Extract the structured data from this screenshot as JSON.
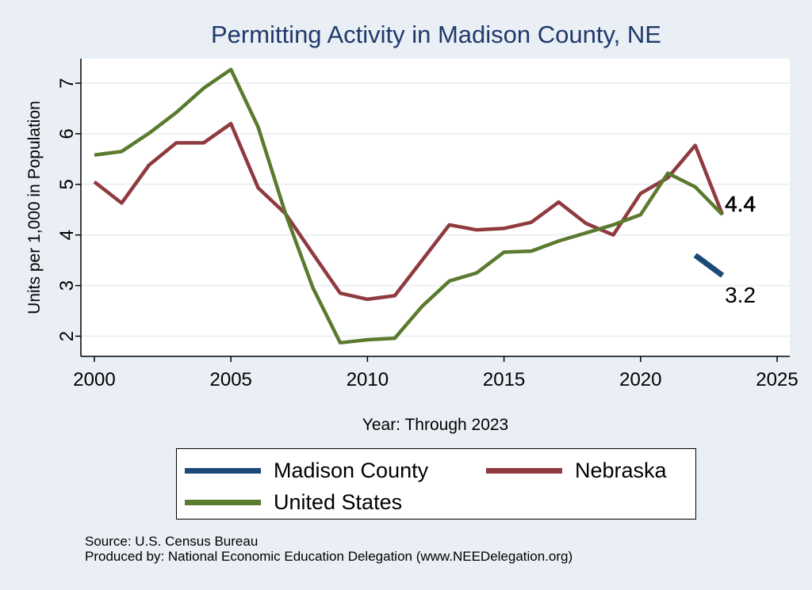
{
  "chart_data": {
    "type": "line",
    "title": "Permitting Activity in Madison County, NE",
    "xlabel": "Year: Through 2023",
    "ylabel": "Units per 1,000 in Population",
    "xlim": [
      2000,
      2025
    ],
    "ylim": [
      1.8,
      7.4
    ],
    "x_ticks": [
      2000,
      2005,
      2010,
      2015,
      2020,
      2025
    ],
    "y_ticks": [
      2,
      3,
      4,
      5,
      6,
      7
    ],
    "grid": true,
    "series": [
      {
        "name": "Madison County",
        "color": "#1b4a78",
        "x": [
          2022,
          2023
        ],
        "values": [
          3.6,
          3.2
        ]
      },
      {
        "name": "Nebraska",
        "color": "#8f3a3e",
        "x": [
          2000,
          2001,
          2002,
          2003,
          2004,
          2005,
          2006,
          2007,
          2008,
          2009,
          2010,
          2011,
          2012,
          2013,
          2014,
          2015,
          2016,
          2017,
          2018,
          2019,
          2020,
          2021,
          2022,
          2023
        ],
        "values": [
          5.05,
          4.63,
          5.38,
          5.82,
          5.82,
          6.2,
          4.93,
          4.42,
          3.63,
          2.85,
          2.73,
          2.8,
          3.5,
          4.2,
          4.1,
          4.13,
          4.25,
          4.65,
          4.23,
          4.0,
          4.82,
          5.13,
          5.77,
          4.4
        ]
      },
      {
        "name": "United States",
        "color": "#5a7a2e",
        "x": [
          2000,
          2001,
          2002,
          2003,
          2004,
          2005,
          2006,
          2007,
          2008,
          2009,
          2010,
          2011,
          2012,
          2013,
          2014,
          2015,
          2016,
          2017,
          2018,
          2019,
          2020,
          2021,
          2022,
          2023
        ],
        "values": [
          5.58,
          5.65,
          6.01,
          6.42,
          6.9,
          7.27,
          6.13,
          4.42,
          2.96,
          1.87,
          1.93,
          1.96,
          2.59,
          3.09,
          3.25,
          3.66,
          3.68,
          3.88,
          4.04,
          4.2,
          4.4,
          5.22,
          4.95,
          4.4
        ]
      }
    ],
    "end_labels": [
      {
        "series": "Nebraska",
        "text": "4.4"
      },
      {
        "series": "Madison County",
        "text": "3.2"
      }
    ],
    "legend": {
      "placement": "bottom",
      "order": [
        "Madison County",
        "Nebraska",
        "United States"
      ]
    }
  },
  "footer": {
    "source": "Source: U.S. Census Bureau",
    "produced_by": "Produced by: National Economic Education Delegation (www.NEEDelegation.org)"
  }
}
